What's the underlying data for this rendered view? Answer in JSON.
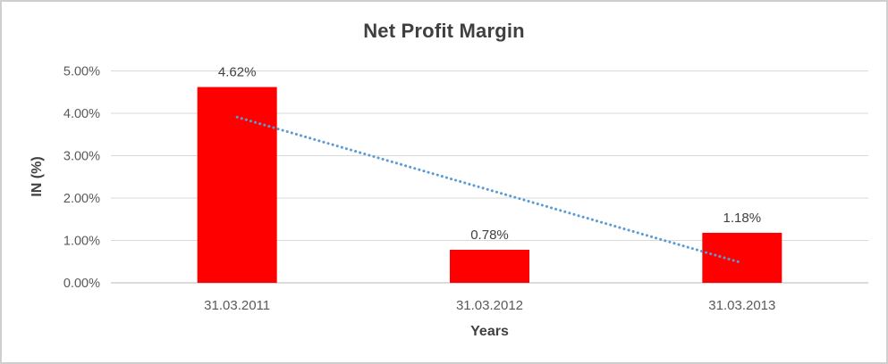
{
  "frame": {
    "background": "#ffffff",
    "border_color": "#cfcfcf"
  },
  "chart_data": {
    "type": "bar",
    "title": "Net Profit Margin",
    "xlabel": "Years",
    "ylabel": "IN (%)",
    "categories": [
      "31.03.2011",
      "31.03.2012",
      "31.03.2013"
    ],
    "series": [
      {
        "name": "Net Profit Margin",
        "values": [
          4.62,
          0.78,
          1.18
        ]
      }
    ],
    "data_labels": [
      "4.62%",
      "0.78%",
      "1.18%"
    ],
    "y_ticks": [
      "0.00%",
      "1.00%",
      "2.00%",
      "3.00%",
      "4.00%",
      "5.00%"
    ],
    "ylim": [
      0,
      5
    ],
    "grid": true,
    "legend": "none",
    "colors": {
      "bar": "#ff0000",
      "gridline": "#d9d9d9",
      "axis_line": "#c6c6c6",
      "tick_label": "#595959",
      "data_label": "#404040",
      "title": "#3f3f3f",
      "trendline": "#5b9bd5"
    },
    "trendline": {
      "type": "linear",
      "style": "dotted",
      "start_value": 3.91,
      "end_value": 0.47
    }
  }
}
